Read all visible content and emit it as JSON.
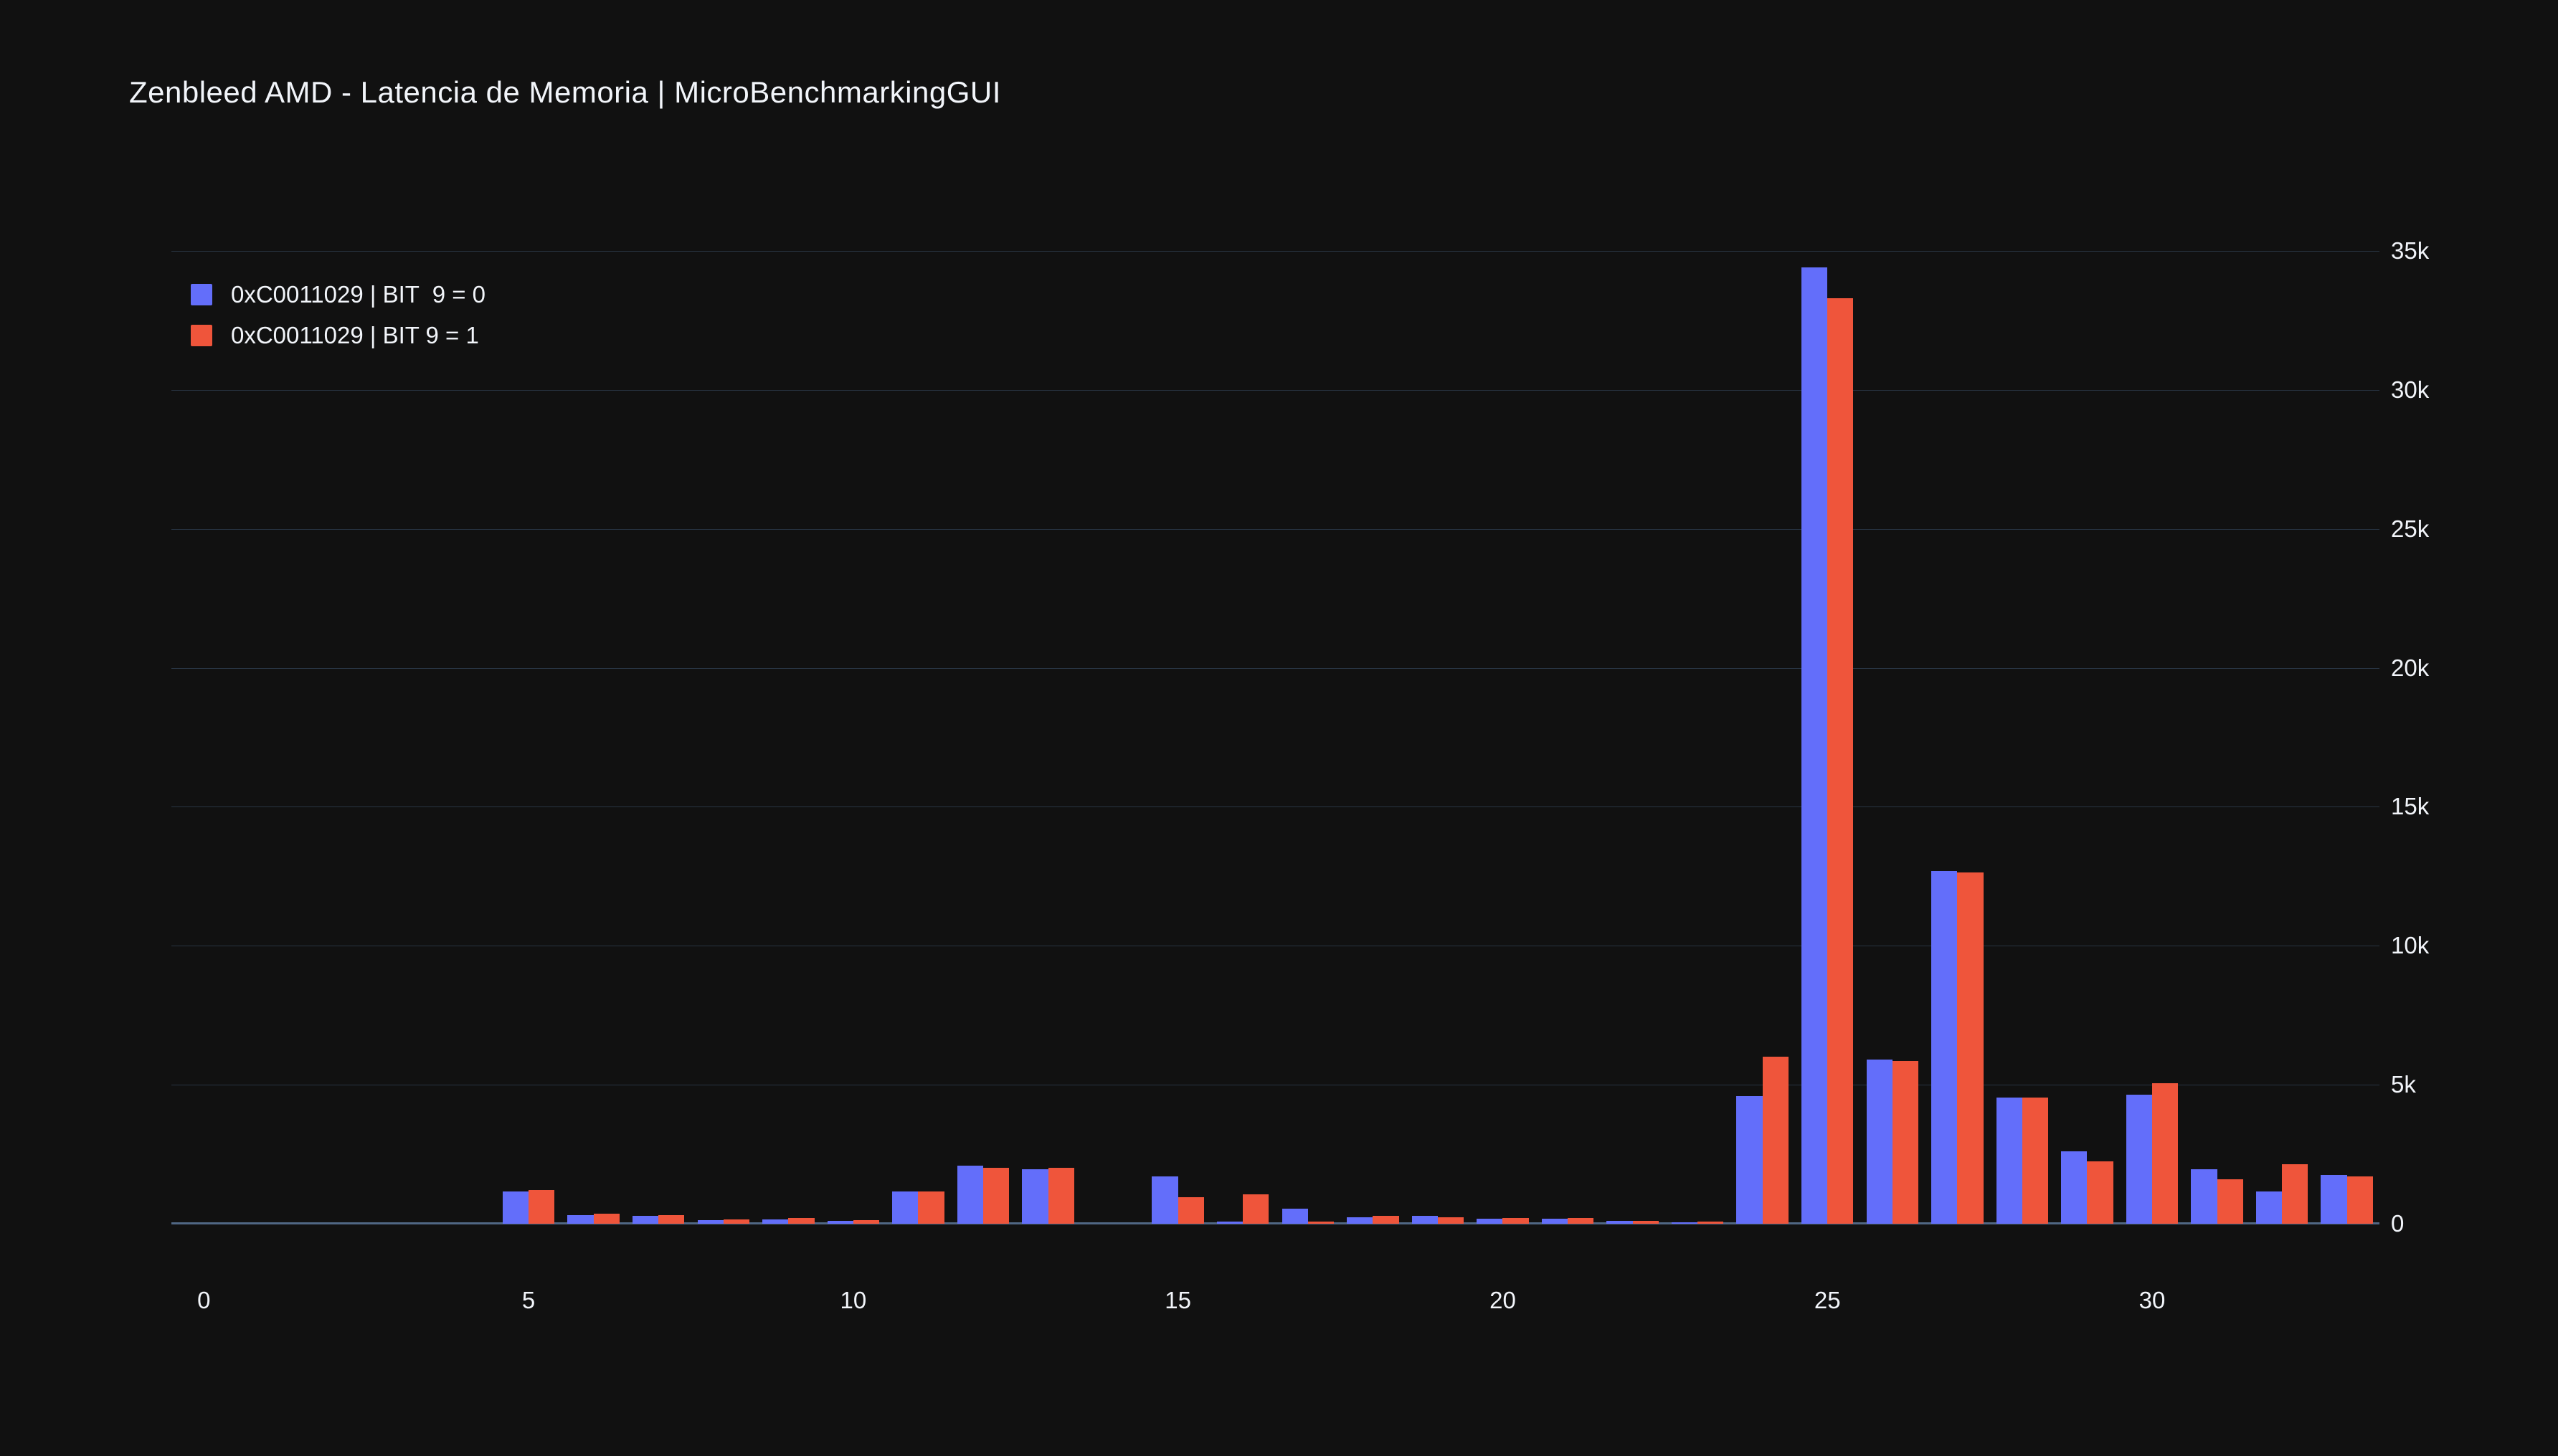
{
  "title": "Zenbleed AMD - Latencia de Memoria | MicroBenchmarkingGUI",
  "colors": {
    "background": "#111111",
    "grid": "#283442",
    "axis_line": "#506784",
    "text": "#f2f5fa",
    "series_blue": "#636EFA",
    "series_red": "#EF553B"
  },
  "legend": {
    "items": [
      {
        "label": "0xC0011029 | BIT  9 = 0",
        "color": "#636EFA"
      },
      {
        "label": "0xC0011029 | BIT 9 = 1",
        "color": "#EF553B"
      }
    ]
  },
  "chart_data": {
    "type": "bar",
    "title": "Zenbleed AMD - Latencia de Memoria | MicroBenchmarkingGUI",
    "xlabel": "",
    "ylabel": "",
    "grid": true,
    "legend_position": "top-left",
    "y_axis_side": "right",
    "xlim": [
      -0.5,
      33.5
    ],
    "ylim": [
      0,
      35000
    ],
    "x_ticks": [
      0,
      5,
      10,
      15,
      20,
      25,
      30
    ],
    "y_ticks": [
      {
        "v": 0,
        "label": "0"
      },
      {
        "v": 5000,
        "label": "5k"
      },
      {
        "v": 10000,
        "label": "10k"
      },
      {
        "v": 15000,
        "label": "15k"
      },
      {
        "v": 20000,
        "label": "20k"
      },
      {
        "v": 25000,
        "label": "25k"
      },
      {
        "v": 30000,
        "label": "30k"
      },
      {
        "v": 35000,
        "label": "35k"
      }
    ],
    "x": [
      5,
      6,
      7,
      8,
      9,
      10,
      11,
      12,
      13,
      14,
      15,
      16,
      17,
      18,
      19,
      20,
      21,
      22,
      23,
      24,
      25,
      26,
      27,
      28,
      29,
      30,
      31,
      32,
      33
    ],
    "series": [
      {
        "name": "0xC0011029 | BIT  9 = 0",
        "color": "#636EFA",
        "values": [
          1150,
          300,
          280,
          120,
          150,
          100,
          1150,
          2100,
          1950,
          0,
          1700,
          80,
          550,
          230,
          290,
          170,
          170,
          110,
          60,
          4600,
          34400,
          5900,
          12700,
          4550,
          2600,
          4650,
          1950,
          1150,
          1750
        ]
      },
      {
        "name": "0xC0011029 | BIT 9 = 1",
        "color": "#EF553B",
        "values": [
          1200,
          350,
          300,
          160,
          200,
          120,
          1150,
          2000,
          2000,
          0,
          950,
          1050,
          80,
          290,
          230,
          210,
          200,
          110,
          80,
          6000,
          33300,
          5850,
          12650,
          4550,
          2250,
          5050,
          1600,
          2150,
          1700
        ]
      }
    ]
  }
}
